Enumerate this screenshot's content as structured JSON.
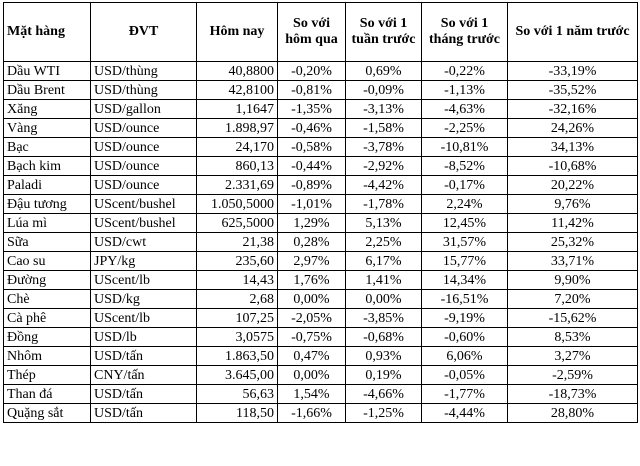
{
  "headers": [
    "Mặt hàng",
    "ĐVT",
    "Hôm nay",
    "So với hôm qua",
    "So với 1 tuần trước",
    "So với 1 tháng trước",
    "So với 1 năm trước"
  ],
  "rows": [
    [
      "Dầu WTI",
      "USD/thùng",
      "40,8800",
      "-0,20%",
      "0,69%",
      "-0,22%",
      "-33,19%"
    ],
    [
      "Dầu Brent",
      "USD/thùng",
      "42,8100",
      "-0,81%",
      "-0,09%",
      "-1,13%",
      "-35,52%"
    ],
    [
      "Xăng",
      "USD/gallon",
      "1,1647",
      "-1,35%",
      "-3,13%",
      "-4,63%",
      "-32,16%"
    ],
    [
      "Vàng",
      "USD/ounce",
      "1.898,97",
      "-0,46%",
      "-1,58%",
      "-2,25%",
      "24,26%"
    ],
    [
      "Bạc",
      "USD/ounce",
      "24,170",
      "-0,58%",
      "-3,78%",
      "-10,81%",
      "34,13%"
    ],
    [
      "Bạch kim",
      "USD/ounce",
      "860,13",
      "-0,44%",
      "-2,92%",
      "-8,52%",
      "-10,68%"
    ],
    [
      "Paladi",
      "USD/ounce",
      "2.331,69",
      "-0,89%",
      "-4,42%",
      "-0,17%",
      "20,22%"
    ],
    [
      "Đậu tương",
      "UScent/bushel",
      "1.050,5000",
      "-1,01%",
      "-1,78%",
      "2,24%",
      "9,76%"
    ],
    [
      "Lúa mì",
      "UScent/bushel",
      "625,5000",
      "1,29%",
      "5,13%",
      "12,45%",
      "11,42%"
    ],
    [
      "Sữa",
      "USD/cwt",
      "21,38",
      "0,28%",
      "2,25%",
      "31,57%",
      "25,32%"
    ],
    [
      "Cao su",
      "JPY/kg",
      "235,60",
      "2,97%",
      "6,17%",
      "15,77%",
      "33,71%"
    ],
    [
      "Đường",
      "UScent/lb",
      "14,43",
      "1,76%",
      "1,41%",
      "14,34%",
      "9,90%"
    ],
    [
      "Chè",
      "USD/kg",
      "2,68",
      "0,00%",
      "0,00%",
      "-16,51%",
      "7,20%"
    ],
    [
      "Cà phê",
      "UScent/lb",
      "107,25",
      "-2,05%",
      "-3,85%",
      "-9,19%",
      "-15,62%"
    ],
    [
      "Đồng",
      "USD/lb",
      "3,0575",
      "-0,75%",
      "-0,68%",
      "-0,60%",
      "8,53%"
    ],
    [
      "Nhôm",
      "USD/tấn",
      "1.863,50",
      "0,47%",
      "0,93%",
      "6,06%",
      "3,27%"
    ],
    [
      "Thép",
      "CNY/tấn",
      "3.645,00",
      "0,00%",
      "0,19%",
      "-0,05%",
      "-2,59%"
    ],
    [
      "Than đá",
      "USD/tấn",
      "56,63",
      "1,54%",
      "-4,66%",
      "-1,77%",
      "-18,73%"
    ],
    [
      "Quặng sắt",
      "USD/tấn",
      "118,50",
      "-1,66%",
      "-1,25%",
      "-4,44%",
      "28,80%"
    ]
  ]
}
